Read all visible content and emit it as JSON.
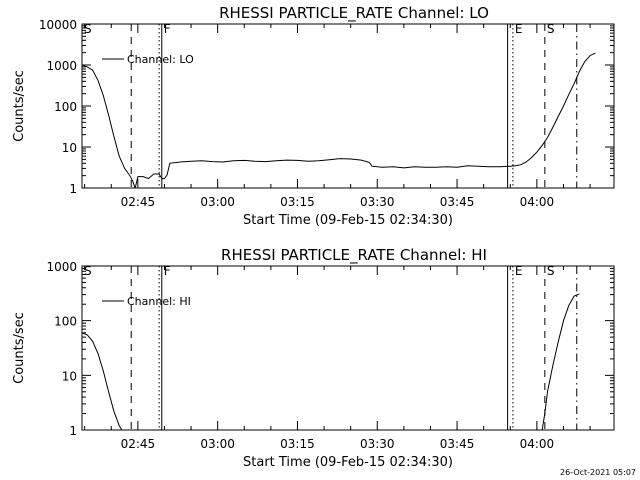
{
  "chart_data": [
    {
      "type": "line",
      "title": "RHESSI PARTICLE_RATE Channel: LO",
      "xlabel": "Start Time (09-Feb-15 02:34:30)",
      "ylabel": "Counts/sec",
      "yscale": "log",
      "xlim": [
        "02:34:30",
        "04:14:30"
      ],
      "ylim": [
        1,
        10000
      ],
      "x_ticks": [
        "02:45",
        "03:00",
        "03:15",
        "03:30",
        "03:45",
        "04:00"
      ],
      "y_ticks": [
        "1",
        "10",
        "100",
        "1000",
        "10000"
      ],
      "grid": false,
      "legend": "top-left",
      "series": [
        {
          "name": "Channel: LO",
          "color": "#000000",
          "x": [
            "02:34:30",
            "02:35:30",
            "02:36:30",
            "02:37:30",
            "02:38:30",
            "02:39:30",
            "02:40:30",
            "02:41:30",
            "02:42:30",
            "02:43:30",
            "02:44:00",
            "02:44:30",
            "02:45:00",
            "02:46:00",
            "02:47:00",
            "02:48:00",
            "02:49:00",
            "02:49:30",
            "02:50:00",
            "02:50:30",
            "02:51:00",
            "02:53:00",
            "02:55:00",
            "02:57:00",
            "02:59:00",
            "03:01:00",
            "03:03:00",
            "03:05:00",
            "03:07:00",
            "03:09:00",
            "03:11:00",
            "03:13:00",
            "03:15:00",
            "03:17:00",
            "03:19:00",
            "03:21:00",
            "03:23:00",
            "03:25:00",
            "03:27:00",
            "03:28:30",
            "03:29:00",
            "03:31:00",
            "03:33:00",
            "03:35:00",
            "03:37:00",
            "03:39:00",
            "03:41:00",
            "03:43:00",
            "03:45:00",
            "03:47:00",
            "03:49:00",
            "03:51:00",
            "03:53:00",
            "03:55:00",
            "03:56:00",
            "03:57:00",
            "03:58:00",
            "03:59:00",
            "04:00:00",
            "04:01:00",
            "04:02:00",
            "04:03:00",
            "04:04:00",
            "04:05:00",
            "04:06:00",
            "04:07:00",
            "04:08:00",
            "04:09:00",
            "04:10:00",
            "04:11:00"
          ],
          "y": [
            1000,
            900,
            750,
            420,
            180,
            60,
            18,
            6,
            3,
            2,
            1.5,
            1,
            1.9,
            1.9,
            1.7,
            2.2,
            2.2,
            1.7,
            1.7,
            2.1,
            4,
            4.3,
            4.5,
            4.6,
            4.4,
            4.3,
            4.6,
            4.7,
            4.5,
            4.4,
            4.6,
            4.8,
            4.7,
            4.5,
            4.6,
            4.9,
            5.2,
            5.1,
            4.8,
            4.2,
            3.4,
            3.2,
            3.3,
            3.1,
            3.3,
            3.2,
            3.2,
            3.3,
            3.2,
            3.5,
            3.4,
            3.3,
            3.3,
            3.4,
            3.5,
            3.7,
            4.3,
            5.5,
            7.5,
            11,
            17,
            30,
            55,
            100,
            190,
            350,
            700,
            1200,
            1700,
            1950
          ]
        }
      ],
      "markers": [
        {
          "label": "S",
          "time": "02:34:30",
          "style": "solid"
        },
        {
          "label": "",
          "time": "02:43:45",
          "style": "dashed"
        },
        {
          "label": "",
          "time": "02:49:00",
          "style": "dotted"
        },
        {
          "label": "F",
          "time": "02:49:30",
          "style": "solid"
        },
        {
          "label": "",
          "time": "03:54:30",
          "style": "solid"
        },
        {
          "label": "E",
          "time": "03:55:30",
          "style": "dotted"
        },
        {
          "label": "S",
          "time": "04:01:30",
          "style": "dashed"
        },
        {
          "label": "",
          "time": "04:07:30",
          "style": "dashdot"
        }
      ]
    },
    {
      "type": "line",
      "title": "RHESSI PARTICLE_RATE Channel: HI",
      "xlabel": "Start Time (09-Feb-15 02:34:30)",
      "ylabel": "Counts/sec",
      "yscale": "log",
      "xlim": [
        "02:34:30",
        "04:14:30"
      ],
      "ylim": [
        1,
        1000
      ],
      "x_ticks": [
        "02:45",
        "03:00",
        "03:15",
        "03:30",
        "03:45",
        "04:00"
      ],
      "y_ticks": [
        "1",
        "10",
        "100",
        "1000"
      ],
      "grid": false,
      "legend": "top-left",
      "series": [
        {
          "name": "Channel: HI",
          "color": "#000000",
          "x": [
            "02:34:30",
            "02:35:30",
            "02:36:30",
            "02:37:30",
            "02:38:30",
            "02:39:30",
            "02:40:30",
            "02:41:30",
            "02:42:00",
            "04:01:00",
            "04:01:30",
            "04:02:00",
            "04:03:00",
            "04:04:00",
            "04:05:00",
            "04:06:00",
            "04:07:00",
            "04:08:00"
          ],
          "y": [
            60,
            55,
            42,
            25,
            12,
            5,
            2.2,
            1.2,
            1,
            1,
            2,
            5,
            15,
            40,
            100,
            190,
            280,
            310
          ]
        }
      ],
      "markers": [
        {
          "label": "S",
          "time": "02:34:30",
          "style": "solid"
        },
        {
          "label": "",
          "time": "02:43:45",
          "style": "dashed"
        },
        {
          "label": "",
          "time": "02:49:00",
          "style": "dotted"
        },
        {
          "label": "F",
          "time": "02:49:30",
          "style": "solid"
        },
        {
          "label": "",
          "time": "03:54:30",
          "style": "solid"
        },
        {
          "label": "E",
          "time": "03:55:30",
          "style": "dotted"
        },
        {
          "label": "S",
          "time": "04:01:30",
          "style": "dashed"
        },
        {
          "label": "",
          "time": "04:07:30",
          "style": "dashdot"
        }
      ]
    }
  ],
  "footer": {
    "stamp": "26-Oct-2021 05:07"
  }
}
